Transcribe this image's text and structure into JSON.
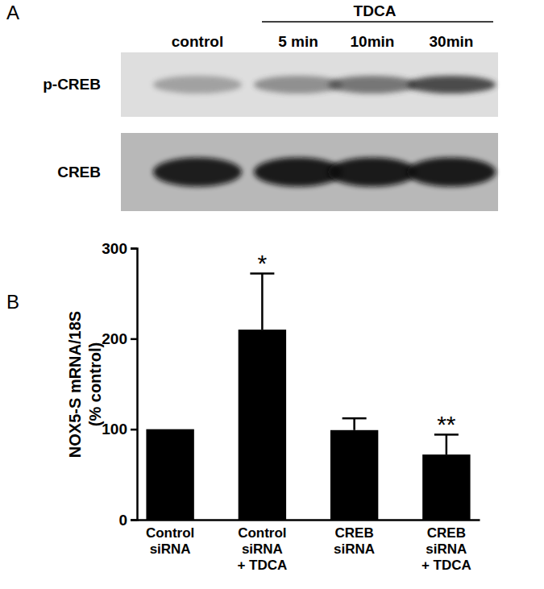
{
  "panel_labels": [
    "A",
    "B"
  ],
  "blot": {
    "treatment": "TDCA",
    "lanes": [
      "control",
      "5 min",
      "10min",
      "30min"
    ],
    "rows": [
      "p-CREB",
      "CREB"
    ]
  },
  "chart_data": {
    "type": "bar",
    "y_label": "NOX5-S mRNA/18S\n(% control)",
    "categories": [
      "Control\nsiRNA",
      "Control\nsiRNA\n+ TDCA",
      "CREB\nsiRNA",
      "CREB\nsiRNA\n+ TDCA"
    ],
    "values": [
      100,
      210,
      99,
      72
    ],
    "errors": [
      null,
      62,
      13,
      22
    ],
    "significance": [
      null,
      "*",
      null,
      "**"
    ],
    "color": "#000000",
    "ylim": [
      0,
      300
    ],
    "yticks": [
      0,
      100,
      200,
      300
    ],
    "grid": false
  }
}
